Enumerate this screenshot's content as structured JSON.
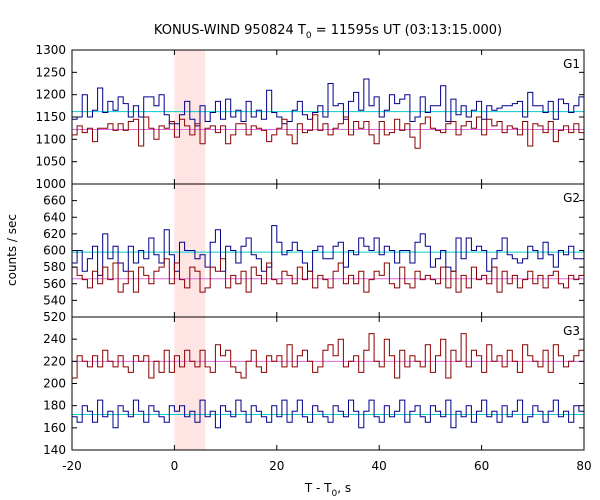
{
  "chart_data": {
    "type": "line",
    "title_main": "KONUS-WIND 950824 T",
    "title_sub": "0",
    "title_rest": " = 11595s UT (03:13:15.000)",
    "xlabel_main": "T - T",
    "xlabel_sub": "0",
    "xlabel_rest": ", s",
    "ylabel": "counts / sec",
    "xlim": [
      -20,
      80
    ],
    "x_ticks": [
      "-20",
      "0",
      "20",
      "40",
      "60",
      "80"
    ],
    "bin_width_s": 1.0,
    "highlight_interval": [
      0,
      6
    ],
    "colors": {
      "blue": "#00008b",
      "red": "#8b0000",
      "cyan": "#00cccc",
      "magenta": "#dd66dd",
      "highlight": "#ffe4e4"
    },
    "panels": [
      {
        "label": "G1",
        "ylim": [
          1000,
          1300
        ],
        "y_ticks": [
          "1000",
          "1050",
          "1100",
          "1150",
          "1200",
          "1250",
          "1300"
        ],
        "series": [
          {
            "color": "#00008b",
            "values": [
              1145,
              1150,
              1200,
              1150,
              1165,
              1215,
              1160,
              1185,
              1165,
              1195,
              1180,
              1150,
              1175,
              1150,
              1195,
              1195,
              1175,
              1200,
              1155,
              1135,
              1135,
              1155,
              1185,
              1145,
              1130,
              1175,
              1140,
              1160,
              1185,
              1145,
              1190,
              1150,
              1165,
              1140,
              1185,
              1150,
              1165,
              1145,
              1210,
              1160,
              1150,
              1135,
              1140,
              1165,
              1185,
              1155,
              1145,
              1160,
              1175,
              1150,
              1225,
              1175,
              1180,
              1145,
              1185,
              1205,
              1165,
              1235,
              1175,
              1195,
              1150,
              1165,
              1200,
              1180,
              1190,
              1200,
              1140,
              1150,
              1195,
              1160,
              1175,
              1175,
              1220,
              1140,
              1190,
              1155,
              1175,
              1150,
              1165,
              1185,
              1145,
              1175,
              1165,
              1170,
              1175,
              1175,
              1180,
              1185,
              1150,
              1205,
              1175,
              1175,
              1160,
              1185,
              1145,
              1190,
              1180,
              1160,
              1175,
              1195
            ]
          },
          {
            "color": "#8b0000",
            "values": [
              1110,
              1130,
              1115,
              1125,
              1095,
              1125,
              1125,
              1135,
              1120,
              1135,
              1120,
              1140,
              1145,
              1085,
              1150,
              1125,
              1100,
              1130,
              1125,
              1140,
              1105,
              1145,
              1130,
              1110,
              1135,
              1090,
              1125,
              1130,
              1115,
              1130,
              1090,
              1110,
              1135,
              1135,
              1110,
              1130,
              1125,
              1120,
              1095,
              1110,
              1125,
              1145,
              1110,
              1090,
              1135,
              1115,
              1120,
              1155,
              1120,
              1135,
              1110,
              1125,
              1135,
              1150,
              1110,
              1140,
              1125,
              1140,
              1110,
              1090,
              1140,
              1110,
              1115,
              1145,
              1120,
              1135,
              1105,
              1080,
              1135,
              1150,
              1125,
              1120,
              1115,
              1135,
              1140,
              1110,
              1130,
              1140,
              1125,
              1150,
              1110,
              1145,
              1130,
              1140,
              1115,
              1130,
              1125,
              1110,
              1140,
              1085,
              1135,
              1130,
              1115,
              1140,
              1095,
              1120,
              1130,
              1115,
              1135,
              1115
            ]
          }
        ],
        "reference_lines": [
          {
            "color": "#00cccc",
            "y": 1162
          },
          {
            "color": "#dd66dd",
            "y": 1122
          }
        ]
      },
      {
        "label": "G2",
        "ylim": [
          520,
          680
        ],
        "y_ticks": [
          "520",
          "540",
          "560",
          "580",
          "600",
          "620",
          "640",
          "660"
        ],
        "series": [
          {
            "color": "#00008b",
            "values": [
              585,
              600,
              575,
              590,
              605,
              570,
              620,
              590,
              605,
              585,
              575,
              605,
              585,
              600,
              590,
              615,
              595,
              585,
              625,
              595,
              575,
              610,
              600,
              600,
              590,
              595,
              580,
              610,
              625,
              575,
              605,
              600,
              585,
              605,
              615,
              595,
              590,
              575,
              580,
              630,
              610,
              595,
              600,
              610,
              600,
              585,
              575,
              600,
              605,
              590,
              590,
              605,
              610,
              580,
              600,
              595,
              615,
              605,
              600,
              615,
              595,
              605,
              600,
              585,
              600,
              600,
              585,
              610,
              620,
              605,
              580,
              590,
              600,
              580,
              575,
              615,
              590,
              615,
              600,
              605,
              600,
              575,
              590,
              600,
              615,
              595,
              590,
              585,
              590,
              605,
              600,
              590,
              610,
              595,
              580,
              600,
              595,
              605,
              590,
              590
            ]
          },
          {
            "color": "#8b0000",
            "values": [
              580,
              570,
              565,
              555,
              575,
              560,
              580,
              565,
              585,
              550,
              560,
              575,
              550,
              580,
              570,
              560,
              575,
              580,
              590,
              560,
              585,
              565,
              555,
              580,
              575,
              550,
              555,
              580,
              575,
              590,
              555,
              570,
              560,
              575,
              550,
              580,
              570,
              560,
              585,
              565,
              560,
              575,
              570,
              560,
              580,
              565,
              575,
              555,
              570,
              565,
              555,
              575,
              585,
              560,
              570,
              560,
              575,
              550,
              565,
              575,
              570,
              585,
              560,
              555,
              580,
              560,
              555,
              575,
              565,
              570,
              565,
              560,
              580,
              555,
              575,
              550,
              570,
              555,
              580,
              565,
              570,
              560,
              580,
              550,
              575,
              560,
              570,
              555,
              565,
              575,
              560,
              570,
              555,
              570,
              575,
              560,
              555,
              570,
              565,
              570
            ]
          }
        ],
        "reference_lines": [
          {
            "color": "#00cccc",
            "y": 598
          },
          {
            "color": "#dd66dd",
            "y": 566
          }
        ]
      },
      {
        "label": "G3",
        "ylim": [
          140,
          260
        ],
        "y_ticks": [
          "140",
          "160",
          "180",
          "200",
          "220",
          "240"
        ],
        "series": [
          {
            "color": "#8b0000",
            "values": [
              205,
              225,
              220,
              215,
              225,
              215,
              230,
              220,
              215,
              225,
              215,
              210,
              225,
              220,
              225,
              205,
              220,
              210,
              230,
              210,
              225,
              215,
              230,
              220,
              215,
              230,
              215,
              210,
              235,
              225,
              230,
              215,
              210,
              205,
              220,
              230,
              215,
              210,
              225,
              220,
              225,
              215,
              235,
              215,
              225,
              230,
              220,
              210,
              215,
              230,
              235,
              225,
              240,
              215,
              220,
              225,
              210,
              230,
              245,
              220,
              215,
              240,
              225,
              205,
              230,
              215,
              225,
              220,
              215,
              235,
              210,
              225,
              240,
              205,
              230,
              220,
              245,
              215,
              230,
              225,
              210,
              235,
              220,
              225,
              215,
              230,
              220,
              210,
              235,
              225,
              220,
              215,
              230,
              210,
              235,
              225,
              215,
              220,
              225,
              230
            ]
          },
          {
            "color": "#00008b",
            "values": [
              170,
              165,
              180,
              175,
              165,
              185,
              170,
              175,
              160,
              180,
              175,
              170,
              185,
              175,
              165,
              180,
              175,
              170,
              165,
              180,
              175,
              180,
              170,
              175,
              165,
              185,
              170,
              175,
              160,
              180,
              175,
              170,
              185,
              175,
              165,
              180,
              175,
              170,
              165,
              180,
              170,
              185,
              165,
              175,
              185,
              170,
              165,
              180,
              175,
              170,
              165,
              180,
              175,
              170,
              185,
              175,
              160,
              175,
              185,
              170,
              165,
              180,
              170,
              175,
              185,
              165,
              175,
              180,
              170,
              165,
              180,
              175,
              170,
              185,
              160,
              175,
              170,
              180,
              165,
              175,
              185,
              170,
              175,
              165,
              180,
              170,
              175,
              185,
              165,
              170,
              180,
              175,
              165,
              175,
              185,
              170,
              175,
              165,
              180,
              175
            ]
          }
        ],
        "reference_lines": [
          {
            "color": "#00cccc",
            "y": 172
          },
          {
            "color": "#dd66dd",
            "y": 220
          }
        ]
      }
    ]
  }
}
